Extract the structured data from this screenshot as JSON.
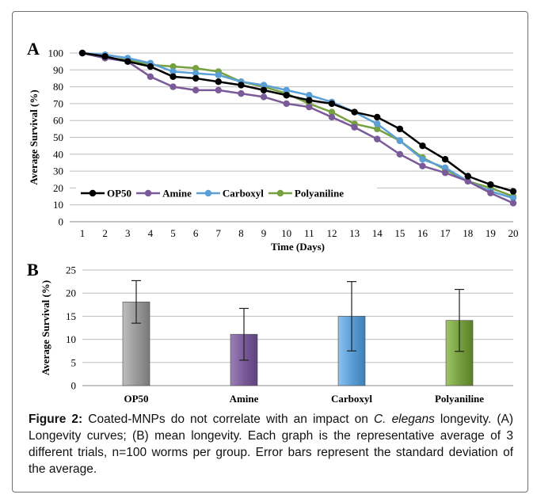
{
  "charts": [
    {
      "panel_label": "A",
      "chart_data": {
        "type": "line",
        "title": "",
        "xlabel": "Time (Days)",
        "ylabel": "Average Survival (%)",
        "x": [
          1,
          2,
          3,
          4,
          5,
          6,
          7,
          8,
          9,
          10,
          11,
          12,
          13,
          14,
          15,
          16,
          17,
          18,
          19,
          20
        ],
        "xlim": [
          1,
          20
        ],
        "ylim": [
          0,
          100
        ],
        "yticks": [
          "0",
          "10",
          "20",
          "30",
          "40",
          "50",
          "60",
          "70",
          "80",
          "90",
          "100"
        ],
        "grid": true,
        "legend_position": "bottom-left",
        "series": [
          {
            "name": "OP50",
            "color": "#000000",
            "values": [
              100,
              98,
              95,
              92,
              86,
              85,
              83,
              81,
              78,
              75,
              72,
              70,
              65,
              62,
              55,
              45,
              37,
              27,
              22,
              18
            ]
          },
          {
            "name": "Amine",
            "color": "#7b5a9a",
            "values": [
              100,
              97,
              95,
              86,
              80,
              78,
              78,
              76,
              74,
              70,
              68,
              62,
              56,
              49,
              40,
              33,
              29,
              24,
              17,
              11
            ]
          },
          {
            "name": "Carboxyl",
            "color": "#5a9fd6",
            "values": [
              100,
              99,
              97,
              94,
              89,
              88,
              87,
              83,
              81,
              78,
              75,
              71,
              65,
              58,
              48,
              37,
              32,
              24,
              18,
              14
            ]
          },
          {
            "name": "Polyaniline",
            "color": "#77a140",
            "values": [
              100,
              97,
              96,
              93,
              92,
              91,
              89,
              83,
              80,
              76,
              70,
              65,
              58,
              55,
              48,
              38,
              31,
              24,
              20,
              15
            ]
          }
        ]
      }
    },
    {
      "panel_label": "B",
      "chart_data": {
        "type": "bar",
        "title": "",
        "xlabel": "",
        "ylabel": "Average Survival (%)",
        "categories": [
          "OP50",
          "Amine",
          "Carboxyl",
          "Polyaniline"
        ],
        "values": [
          18.1,
          11.1,
          15.0,
          14.1
        ],
        "error": [
          4.6,
          5.6,
          7.5,
          6.7
        ],
        "colors": [
          "#9a9a9a",
          "#7b5a9a",
          "#5a9fd6",
          "#77a140"
        ],
        "ylim": [
          0,
          25
        ],
        "yticks": [
          "0",
          "5",
          "10",
          "15",
          "20",
          "25"
        ],
        "grid": true
      }
    }
  ],
  "caption": {
    "figure_label": "Figure 2:",
    "text_part1": " Coated-MNPs do not correlate with an impact on ",
    "species_genus": "C.",
    "species_name": "elegans",
    "text_part2": " longevity. (A) Longevity curves; (B) mean longevity. Each graph is the representative average of 3 different trials, n=100 worms per group. Error bars represent the standard deviation of the average."
  }
}
